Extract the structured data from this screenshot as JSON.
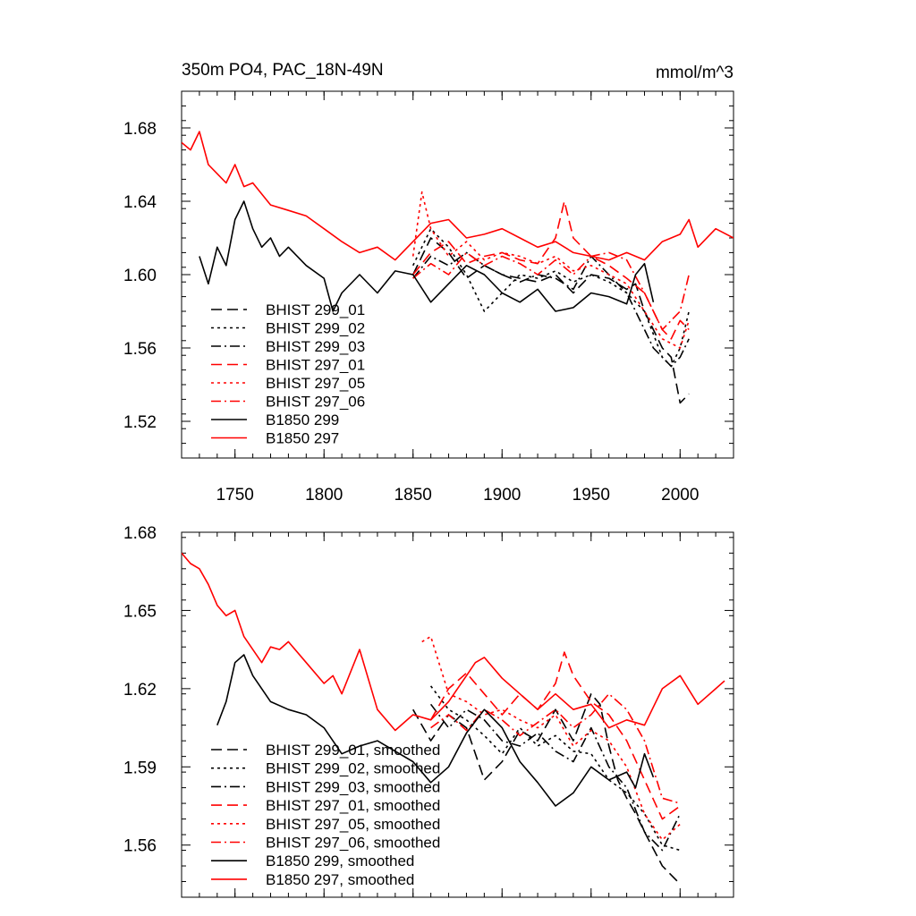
{
  "chart_data": [
    {
      "type": "line",
      "title": "350m PO4, PAC_18N-49N",
      "units": "mmol/m^3",
      "xlim": [
        1720,
        2030
      ],
      "ylim": [
        1.5,
        1.7
      ],
      "xticks": [
        1750,
        1800,
        1850,
        1900,
        1950,
        2000
      ],
      "xtick_labels": [
        "1750",
        "1800",
        "1850",
        "1900",
        "1950",
        "2000"
      ],
      "yticks": [
        1.52,
        1.56,
        1.6,
        1.64,
        1.68
      ],
      "ytick_labels": [
        "1.52",
        "1.56",
        "1.60",
        "1.64",
        "1.68"
      ],
      "grid": false,
      "legend_position": "lower-left",
      "series": [
        {
          "name": "BHIST 299_01",
          "color": "#000000",
          "dash": "dash",
          "x": [
            1850,
            1860,
            1870,
            1880,
            1890,
            1900,
            1910,
            1920,
            1930,
            1940,
            1950,
            1960,
            1970,
            1975,
            1980,
            1985,
            1990,
            1995,
            2000,
            2005
          ],
          "y": [
            1.6,
            1.62,
            1.612,
            1.598,
            1.605,
            1.6,
            1.598,
            1.596,
            1.6,
            1.59,
            1.6,
            1.598,
            1.592,
            1.595,
            1.58,
            1.57,
            1.56,
            1.555,
            1.53,
            1.535
          ]
        },
        {
          "name": "BHIST 299_02",
          "color": "#000000",
          "dash": "dot",
          "x": [
            1850,
            1860,
            1870,
            1880,
            1890,
            1900,
            1910,
            1920,
            1930,
            1940,
            1950,
            1960,
            1970,
            1980,
            1990,
            1995,
            2000,
            2005
          ],
          "y": [
            1.605,
            1.625,
            1.615,
            1.6,
            1.58,
            1.59,
            1.6,
            1.598,
            1.602,
            1.596,
            1.6,
            1.596,
            1.59,
            1.58,
            1.555,
            1.55,
            1.56,
            1.58
          ]
        },
        {
          "name": "BHIST 299_03",
          "color": "#000000",
          "dash": "dashdot",
          "x": [
            1850,
            1860,
            1870,
            1880,
            1890,
            1900,
            1910,
            1920,
            1930,
            1940,
            1950,
            1960,
            1970,
            1980,
            1985,
            1990,
            1995,
            2000,
            2005
          ],
          "y": [
            1.598,
            1.61,
            1.605,
            1.612,
            1.605,
            1.6,
            1.596,
            1.6,
            1.598,
            1.592,
            1.61,
            1.6,
            1.59,
            1.57,
            1.56,
            1.555,
            1.55,
            1.555,
            1.565
          ]
        },
        {
          "name": "BHIST 297_01",
          "color": "#ff0000",
          "dash": "dash",
          "x": [
            1850,
            1860,
            1870,
            1880,
            1890,
            1900,
            1910,
            1920,
            1930,
            1935,
            1940,
            1950,
            1960,
            1970,
            1980,
            1990,
            1995,
            2000,
            2005
          ],
          "y": [
            1.6,
            1.612,
            1.618,
            1.606,
            1.61,
            1.612,
            1.608,
            1.606,
            1.62,
            1.64,
            1.62,
            1.61,
            1.605,
            1.598,
            1.59,
            1.57,
            1.565,
            1.575,
            1.57
          ]
        },
        {
          "name": "BHIST 297_05",
          "color": "#ff0000",
          "dash": "dot",
          "x": [
            1850,
            1855,
            1860,
            1870,
            1880,
            1890,
            1900,
            1910,
            1920,
            1930,
            1940,
            1950,
            1960,
            1970,
            1980,
            1990,
            2000,
            2005
          ],
          "y": [
            1.61,
            1.645,
            1.625,
            1.61,
            1.618,
            1.608,
            1.612,
            1.61,
            1.606,
            1.61,
            1.602,
            1.605,
            1.6,
            1.595,
            1.58,
            1.565,
            1.56,
            1.575
          ]
        },
        {
          "name": "BHIST 297_06",
          "color": "#ff0000",
          "dash": "dashdot",
          "x": [
            1850,
            1860,
            1870,
            1880,
            1890,
            1900,
            1910,
            1920,
            1930,
            1940,
            1950,
            1960,
            1970,
            1980,
            1990,
            2000,
            2005
          ],
          "y": [
            1.598,
            1.606,
            1.6,
            1.612,
            1.605,
            1.61,
            1.606,
            1.6,
            1.608,
            1.6,
            1.61,
            1.612,
            1.608,
            1.59,
            1.57,
            1.58,
            1.6
          ]
        },
        {
          "name": "B1850 299",
          "color": "#000000",
          "dash": "solid",
          "x": [
            1730,
            1735,
            1740,
            1745,
            1750,
            1755,
            1760,
            1765,
            1770,
            1775,
            1780,
            1790,
            1800,
            1805,
            1810,
            1820,
            1830,
            1840,
            1850,
            1860,
            1870,
            1880,
            1890,
            1900,
            1910,
            1920,
            1930,
            1940,
            1950,
            1960,
            1970,
            1975,
            1980,
            1985
          ],
          "y": [
            1.61,
            1.595,
            1.615,
            1.605,
            1.63,
            1.64,
            1.625,
            1.615,
            1.62,
            1.61,
            1.615,
            1.605,
            1.598,
            1.58,
            1.59,
            1.6,
            1.59,
            1.602,
            1.6,
            1.585,
            1.595,
            1.605,
            1.6,
            1.59,
            1.585,
            1.592,
            1.58,
            1.582,
            1.59,
            1.588,
            1.584,
            1.6,
            1.606,
            1.585
          ]
        },
        {
          "name": "B1850 297",
          "color": "#ff0000",
          "dash": "solid",
          "x": [
            1720,
            1725,
            1730,
            1735,
            1740,
            1745,
            1750,
            1755,
            1760,
            1770,
            1780,
            1790,
            1800,
            1810,
            1820,
            1830,
            1840,
            1850,
            1860,
            1870,
            1880,
            1890,
            1900,
            1910,
            1920,
            1930,
            1940,
            1950,
            1960,
            1970,
            1980,
            1990,
            2000,
            2005,
            2010,
            2020,
            2030
          ],
          "y": [
            1.672,
            1.668,
            1.678,
            1.66,
            1.655,
            1.65,
            1.66,
            1.648,
            1.65,
            1.638,
            1.635,
            1.632,
            1.625,
            1.618,
            1.612,
            1.615,
            1.608,
            1.618,
            1.628,
            1.63,
            1.62,
            1.622,
            1.625,
            1.62,
            1.615,
            1.618,
            1.612,
            1.61,
            1.608,
            1.612,
            1.608,
            1.618,
            1.622,
            1.63,
            1.615,
            1.625,
            1.62
          ]
        }
      ]
    },
    {
      "type": "line",
      "xlim": [
        1720,
        2030
      ],
      "ylim": [
        1.54,
        1.68
      ],
      "xticks": [
        1750,
        1800,
        1850,
        1900,
        1950,
        2000
      ],
      "yticks": [
        1.56,
        1.59,
        1.62,
        1.65,
        1.68
      ],
      "ytick_labels": [
        "1.56",
        "1.59",
        "1.62",
        "1.65",
        "1.68"
      ],
      "grid": false,
      "legend_position": "lower-left",
      "series": [
        {
          "name": "BHIST 299_01, smoothed",
          "color": "#000000",
          "dash": "dash",
          "x": [
            1850,
            1860,
            1870,
            1880,
            1890,
            1900,
            1910,
            1920,
            1930,
            1940,
            1950,
            1955,
            1960,
            1965,
            1970,
            1975,
            1980,
            1990,
            2000
          ],
          "y": [
            1.612,
            1.6,
            1.61,
            1.605,
            1.585,
            1.592,
            1.604,
            1.6,
            1.612,
            1.6,
            1.618,
            1.614,
            1.598,
            1.585,
            1.578,
            1.572,
            1.565,
            1.552,
            1.545
          ]
        },
        {
          "name": "BHIST 299_02, smoothed",
          "color": "#000000",
          "dash": "dot",
          "x": [
            1860,
            1870,
            1880,
            1890,
            1900,
            1910,
            1920,
            1930,
            1940,
            1950,
            1960,
            1970,
            1980,
            1990,
            2000
          ],
          "y": [
            1.621,
            1.612,
            1.608,
            1.602,
            1.595,
            1.605,
            1.598,
            1.602,
            1.596,
            1.595,
            1.585,
            1.58,
            1.572,
            1.56,
            1.558
          ]
        },
        {
          "name": "BHIST 299_03, smoothed",
          "color": "#000000",
          "dash": "dashdot",
          "x": [
            1860,
            1870,
            1880,
            1890,
            1900,
            1910,
            1920,
            1930,
            1940,
            1950,
            1960,
            1970,
            1980,
            1990,
            2000
          ],
          "y": [
            1.614,
            1.605,
            1.612,
            1.608,
            1.6,
            1.598,
            1.603,
            1.596,
            1.592,
            1.605,
            1.59,
            1.582,
            1.565,
            1.558,
            1.572
          ]
        },
        {
          "name": "BHIST 297_01, smoothed",
          "color": "#ff0000",
          "dash": "dash",
          "x": [
            1860,
            1870,
            1880,
            1890,
            1900,
            1910,
            1920,
            1930,
            1935,
            1940,
            1950,
            1960,
            1970,
            1980,
            1990,
            2000
          ],
          "y": [
            1.608,
            1.62,
            1.626,
            1.618,
            1.61,
            1.618,
            1.612,
            1.622,
            1.634,
            1.625,
            1.615,
            1.61,
            1.6,
            1.585,
            1.57,
            1.575
          ]
        },
        {
          "name": "BHIST 297_05, smoothed",
          "color": "#ff0000",
          "dash": "dot",
          "x": [
            1855,
            1860,
            1870,
            1880,
            1890,
            1900,
            1910,
            1920,
            1930,
            1940,
            1950,
            1960,
            1970,
            1980,
            1990,
            2000
          ],
          "y": [
            1.638,
            1.64,
            1.618,
            1.615,
            1.61,
            1.612,
            1.608,
            1.605,
            1.61,
            1.598,
            1.604,
            1.6,
            1.59,
            1.572,
            1.562,
            1.568
          ]
        },
        {
          "name": "BHIST 297_06, smoothed",
          "color": "#ff0000",
          "dash": "dashdot",
          "x": [
            1860,
            1870,
            1880,
            1890,
            1900,
            1910,
            1920,
            1930,
            1940,
            1950,
            1960,
            1970,
            1980,
            1990,
            2000
          ],
          "y": [
            1.605,
            1.61,
            1.604,
            1.612,
            1.608,
            1.602,
            1.607,
            1.612,
            1.605,
            1.61,
            1.618,
            1.612,
            1.6,
            1.578,
            1.576
          ]
        },
        {
          "name": "B1850 299, smoothed",
          "color": "#000000",
          "dash": "solid",
          "x": [
            1740,
            1745,
            1750,
            1755,
            1760,
            1770,
            1780,
            1790,
            1800,
            1810,
            1820,
            1830,
            1840,
            1850,
            1860,
            1870,
            1880,
            1890,
            1900,
            1910,
            1920,
            1930,
            1940,
            1950,
            1960,
            1970,
            1975,
            1980,
            1985
          ],
          "y": [
            1.606,
            1.615,
            1.63,
            1.633,
            1.625,
            1.615,
            1.612,
            1.61,
            1.605,
            1.595,
            1.598,
            1.6,
            1.596,
            1.592,
            1.584,
            1.59,
            1.603,
            1.612,
            1.605,
            1.592,
            1.584,
            1.575,
            1.58,
            1.59,
            1.585,
            1.588,
            1.582,
            1.595,
            1.586
          ]
        },
        {
          "name": "B1850 297, smoothed",
          "color": "#ff0000",
          "dash": "solid",
          "x": [
            1720,
            1725,
            1730,
            1735,
            1740,
            1745,
            1750,
            1755,
            1760,
            1765,
            1770,
            1775,
            1780,
            1790,
            1800,
            1805,
            1810,
            1820,
            1830,
            1840,
            1850,
            1860,
            1870,
            1880,
            1885,
            1890,
            1900,
            1910,
            1920,
            1930,
            1940,
            1950,
            1960,
            1970,
            1980,
            1990,
            2000,
            2010,
            2020,
            2025
          ],
          "y": [
            1.672,
            1.668,
            1.666,
            1.66,
            1.652,
            1.648,
            1.65,
            1.64,
            1.635,
            1.63,
            1.636,
            1.635,
            1.638,
            1.63,
            1.622,
            1.625,
            1.618,
            1.635,
            1.612,
            1.604,
            1.61,
            1.608,
            1.615,
            1.625,
            1.63,
            1.632,
            1.624,
            1.618,
            1.612,
            1.618,
            1.612,
            1.614,
            1.605,
            1.608,
            1.606,
            1.62,
            1.625,
            1.614,
            1.62,
            1.623
          ]
        }
      ]
    }
  ]
}
